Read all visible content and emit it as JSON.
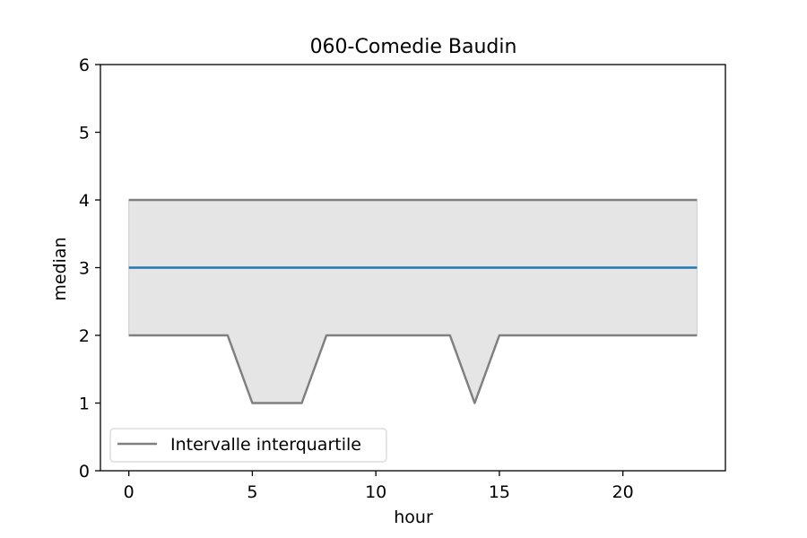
{
  "chart_data": {
    "type": "line",
    "title": "060-Comedie Baudin",
    "xlabel": "hour",
    "ylabel": "median",
    "xlim": [
      -1.15,
      24.15
    ],
    "ylim": [
      0,
      6
    ],
    "x_ticks": [
      0,
      5,
      10,
      15,
      20
    ],
    "y_ticks": [
      0,
      1,
      2,
      3,
      4,
      5,
      6
    ],
    "grid": false,
    "legend_position": "lower-left",
    "legend": [
      "Intervalle interquartile"
    ],
    "colors": {
      "median": "#1f77b4",
      "quartiles": "#808080",
      "band": "#e5e5e5"
    },
    "x": [
      0,
      1,
      2,
      3,
      4,
      5,
      6,
      7,
      8,
      9,
      10,
      11,
      12,
      13,
      14,
      15,
      16,
      17,
      18,
      19,
      20,
      21,
      22,
      23
    ],
    "series": [
      {
        "role": "median",
        "values": [
          3,
          3,
          3,
          3,
          3,
          3,
          3,
          3,
          3,
          3,
          3,
          3,
          3,
          3,
          3,
          3,
          3,
          3,
          3,
          3,
          3,
          3,
          3,
          3
        ]
      },
      {
        "role": "q3",
        "name": "Intervalle interquartile",
        "values": [
          4,
          4,
          4,
          4,
          4,
          4,
          4,
          4,
          4,
          4,
          4,
          4,
          4,
          4,
          4,
          4,
          4,
          4,
          4,
          4,
          4,
          4,
          4,
          4
        ]
      },
      {
        "role": "q1",
        "values": [
          2,
          2,
          2,
          2,
          2,
          1,
          1,
          1,
          2,
          2,
          2,
          2,
          2,
          2,
          1,
          2,
          2,
          2,
          2,
          2,
          2,
          2,
          2,
          2
        ]
      }
    ]
  }
}
